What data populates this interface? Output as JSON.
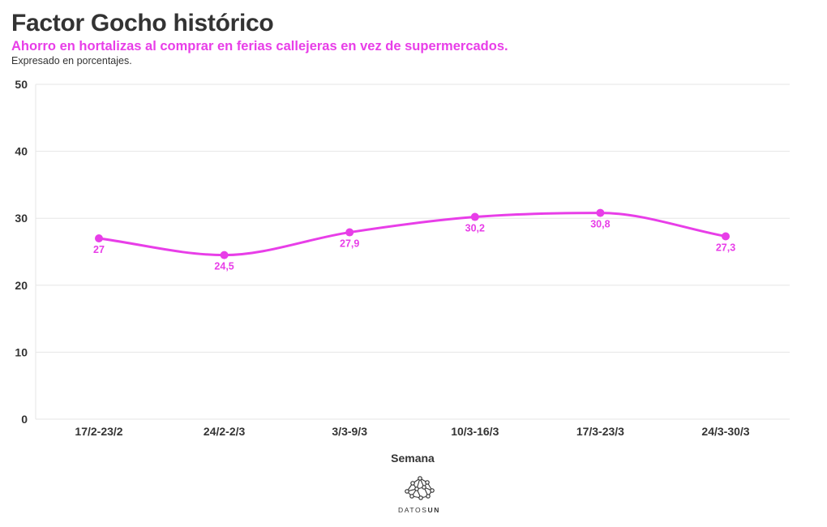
{
  "header": {
    "title": "Factor Gocho histórico",
    "subtitle": "Ahorro en hortalizas al comprar en ferias callejeras en vez de supermercados.",
    "caption": "Expresado en porcentajes."
  },
  "chart_data": {
    "type": "line",
    "categories": [
      "17/2-23/2",
      "24/2-2/3",
      "3/3-9/3",
      "10/3-16/3",
      "17/3-23/3",
      "24/3-30/3"
    ],
    "values": [
      27,
      24.5,
      27.9,
      30.2,
      30.8,
      27.3
    ],
    "value_labels": [
      "27",
      "24,5",
      "27,9",
      "30,2",
      "30,8",
      "27,3"
    ],
    "xlabel": "Semana",
    "ylabel": "",
    "ylim": [
      0,
      50
    ],
    "yticks": [
      0,
      10,
      20,
      30,
      40,
      50
    ],
    "grid": true,
    "smooth": true,
    "line_color": "#e83ee8"
  },
  "logo": {
    "text_light": "DATOS",
    "text_bold": "UN"
  },
  "colors": {
    "accent": "#e83ee8",
    "text": "#333333",
    "grid": "#e6e6e6"
  }
}
